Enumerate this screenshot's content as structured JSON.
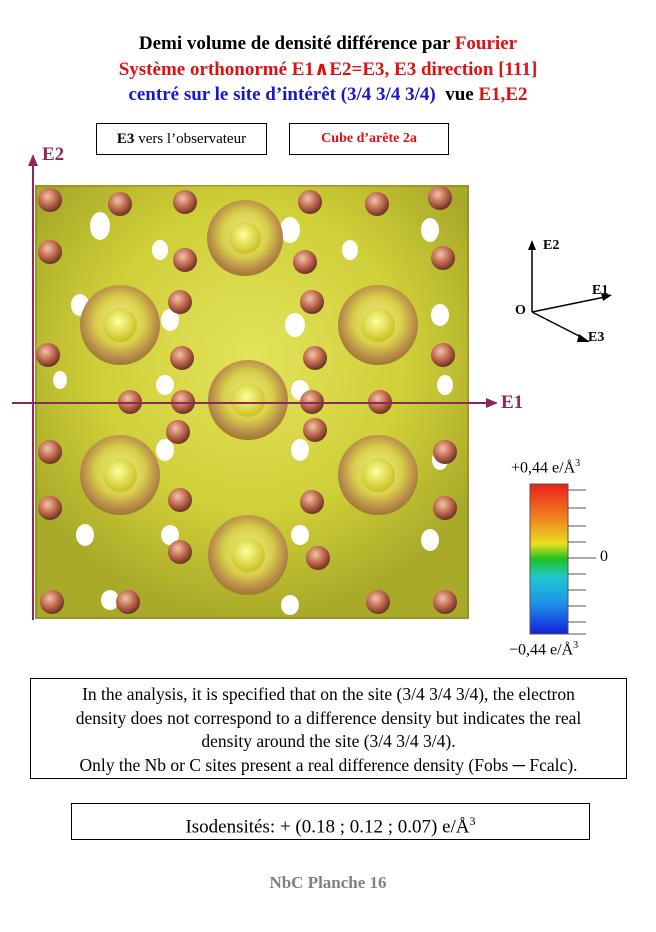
{
  "title": {
    "line1_black": "Demi volume de densité différence par",
    "line1_red": "Fourier",
    "line2": "Système orthonormé E1∧E2=E3,     E3 direction [111]",
    "line3_blue": "centré sur le site d’intérêt (3/4 3/4 3/4)",
    "line3_black": "vue",
    "line3_red": "E1,E2"
  },
  "tags": {
    "e3_bold": "E3",
    "e3_rest": " vers l’observateur",
    "cube": "Cube d’arête 2a"
  },
  "axes": {
    "vertical": "E2",
    "horizontal": "E1"
  },
  "triad": {
    "e2": "E2",
    "e1": "E1",
    "e3": "E3",
    "origin": "O"
  },
  "colorbar": {
    "max_label": "+0,44 e/Å",
    "mid_label": "0",
    "min_label": "−0,44 e/Å",
    "exponent": "3"
  },
  "note": {
    "line1": "In the analysis, it is specified that on the site (3/4 3/4 3/4), the electron",
    "line2": "density does not correspond to a difference density but indicates the real",
    "line3": "density around the site (3/4 3/4 3/4).",
    "line4": "Only the Nb or C sites present a real difference density (Fobs ─ Fcalc)."
  },
  "isodensity": {
    "label": "Isodensités: + (0.18 ; 0.12 ; 0.07) e/Å",
    "exponent": "3"
  },
  "footer": "NbC  Planche 16",
  "colors": {
    "title_red": "#e11010",
    "title_blue": "#1818c8",
    "axis": "#8b2a5a",
    "surface_yellow": "#d7d73a",
    "atom": "#c06a4f"
  }
}
